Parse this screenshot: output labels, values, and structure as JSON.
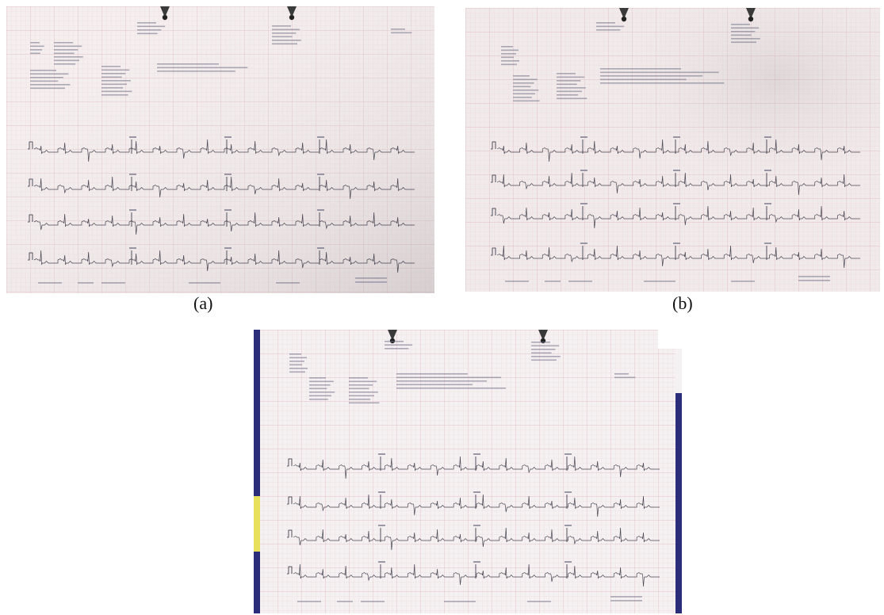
{
  "figure": {
    "panels": [
      {
        "id": "a",
        "caption": "(a)"
      },
      {
        "id": "b",
        "caption": "(b)"
      },
      {
        "id": "c",
        "caption": ""
      }
    ]
  },
  "colors": {
    "paper": "#f3ecec",
    "grid": "#e8c9cc",
    "trace": "#2a2a3a",
    "clip": "#3a3a3a",
    "blue_strip": "#2b2d7a",
    "yellow_strip": "#e8e05a"
  },
  "icons": [
    "binder-clip-icon"
  ]
}
